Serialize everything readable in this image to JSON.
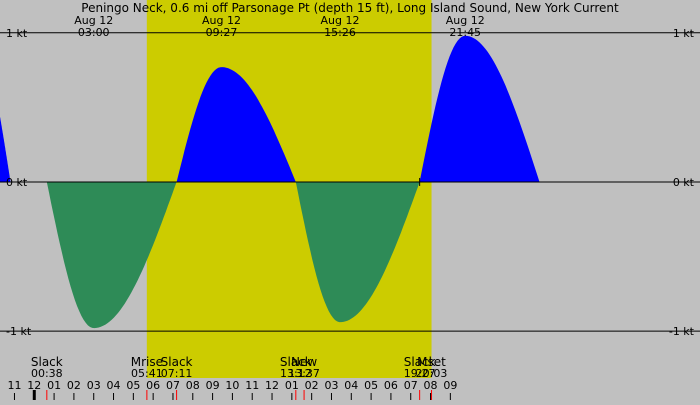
{
  "title": "Peningo Neck, 0.6 mi off Parsonage Pt (depth 15 ft), Long Island Sound, New York Current",
  "colors": {
    "night": "#c0c0c0",
    "day": "#cccc00",
    "flood": "#0000ff",
    "ebb": "#2e8b57",
    "grid": "#000000",
    "tick_major": "#000000",
    "tick_minor": "#ff0000"
  },
  "chart_data": {
    "type": "area",
    "x_unit": "hours since 2024-08-12 00:00",
    "xlim": [
      -1.73,
      33.6
    ],
    "ylim": [
      -1.12,
      1.22
    ],
    "y_gridlines": [
      1,
      0,
      -1
    ],
    "y_tick_labels": [
      {
        "value": 1,
        "label": "1 kt"
      },
      {
        "value": 0,
        "label": "0 kt"
      },
      {
        "value": -1,
        "label": "-1 kt"
      }
    ],
    "daylight": {
      "start": 5.68,
      "end": 20.05
    },
    "events_top": [
      {
        "date": "Aug 12",
        "time": "03:00",
        "x": 3.0
      },
      {
        "date": "Aug 12",
        "time": "09:27",
        "x": 9.45
      },
      {
        "date": "Aug 12",
        "time": "15:26",
        "x": 15.43
      },
      {
        "date": "Aug 12",
        "time": "21:45",
        "x": 21.75
      }
    ],
    "events_bottom": [
      {
        "label": "Slack",
        "time": "00:38",
        "x": 0.633
      },
      {
        "label": "Mrise",
        "time": "05:41",
        "x": 5.683
      },
      {
        "label": "Slack",
        "time": "07:11",
        "x": 7.183
      },
      {
        "label": "Slack",
        "time": "13:12",
        "x": 13.2
      },
      {
        "label": "New",
        "time": "13:37",
        "x": 13.617
      },
      {
        "label": "Slack",
        "time": "19:27",
        "x": 19.45
      },
      {
        "label": "Mset",
        "time": "20:03",
        "x": 20.05
      }
    ],
    "extremes": [
      {
        "x": -3.0,
        "y": 0.98
      },
      {
        "x": 3.0,
        "y": -0.98
      },
      {
        "x": 9.45,
        "y": 0.77
      },
      {
        "x": 15.43,
        "y": -0.94
      },
      {
        "x": 21.75,
        "y": 0.98
      }
    ],
    "slack_points": [
      -1.2,
      0.633,
      7.183,
      13.2,
      19.45,
      25.5
    ],
    "marker": {
      "x": 19.45,
      "y": 0
    },
    "hour_labels": [
      "11",
      "12",
      "01",
      "02",
      "03",
      "04",
      "05",
      "06",
      "07",
      "08",
      "09",
      "10",
      "11",
      "12",
      "01",
      "02",
      "03",
      "04",
      "05",
      "06",
      "07",
      "08",
      "09"
    ],
    "first_hour": -1
  }
}
